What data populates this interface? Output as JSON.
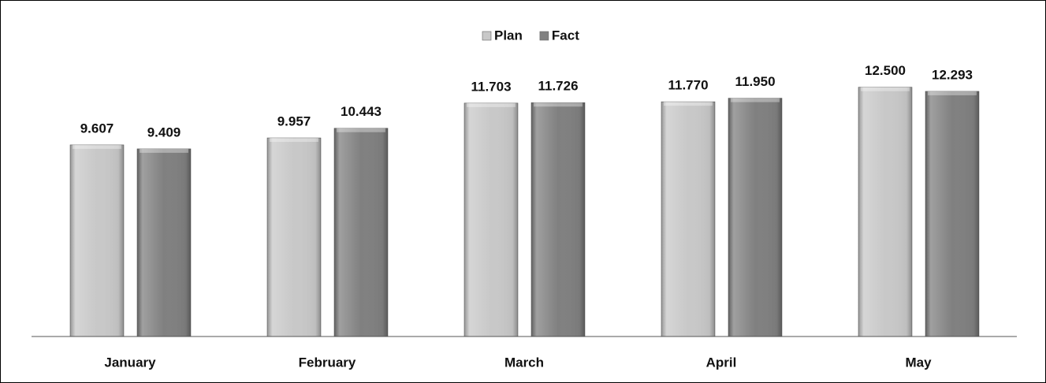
{
  "chart_data": {
    "type": "bar",
    "categories": [
      "January",
      "February",
      "March",
      "April",
      "May"
    ],
    "series": [
      {
        "name": "Plan",
        "color": "#c8c8c8",
        "values": [
          9.607,
          9.957,
          11.703,
          11.77,
          12.5
        ],
        "value_labels": [
          "9.607",
          "9.957",
          "11.703",
          "11.770",
          "12.500"
        ]
      },
      {
        "name": "Fact",
        "color": "#808080",
        "values": [
          9.409,
          10.443,
          11.726,
          11.95,
          12.293
        ],
        "value_labels": [
          "9.409",
          "10.443",
          "11.726",
          "11.950",
          "12.293"
        ]
      }
    ],
    "ylim": [
      0,
      13
    ],
    "legend": "top"
  }
}
